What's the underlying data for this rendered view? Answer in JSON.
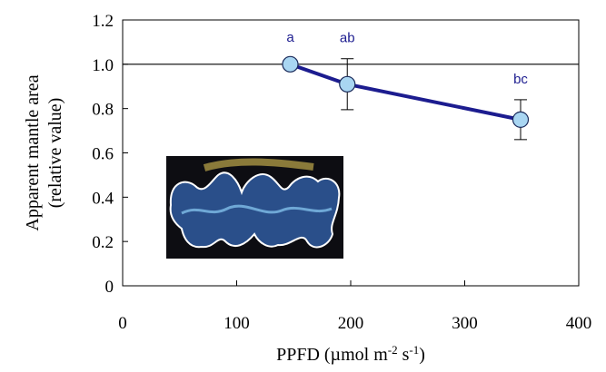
{
  "chart_data": {
    "type": "line",
    "y_label": [
      "Apparent mantle area",
      "(relative value)"
    ],
    "x_label": [
      "PPFD (µmol m",
      "-2",
      " s",
      "-1",
      ")"
    ],
    "x": [
      147,
      197,
      349
    ],
    "series": [
      {
        "color": "#1c1c8f",
        "marker_color": "#a9d6f2",
        "values": [
          1.0,
          0.91,
          0.75
        ],
        "errors": [
          null,
          0.115,
          0.09
        ]
      }
    ],
    "point_labels": [
      "a",
      "ab",
      "bc"
    ],
    "reference_line": 1.0,
    "xlim": [
      0,
      400
    ],
    "xticks": [
      0,
      100,
      200,
      300,
      400
    ],
    "ylim": [
      0,
      1.2
    ],
    "yticks": [
      0,
      0.2,
      0.4,
      0.6,
      0.8,
      {
        "value": 1.0,
        "label": "1.0"
      },
      1.2
    ]
  }
}
